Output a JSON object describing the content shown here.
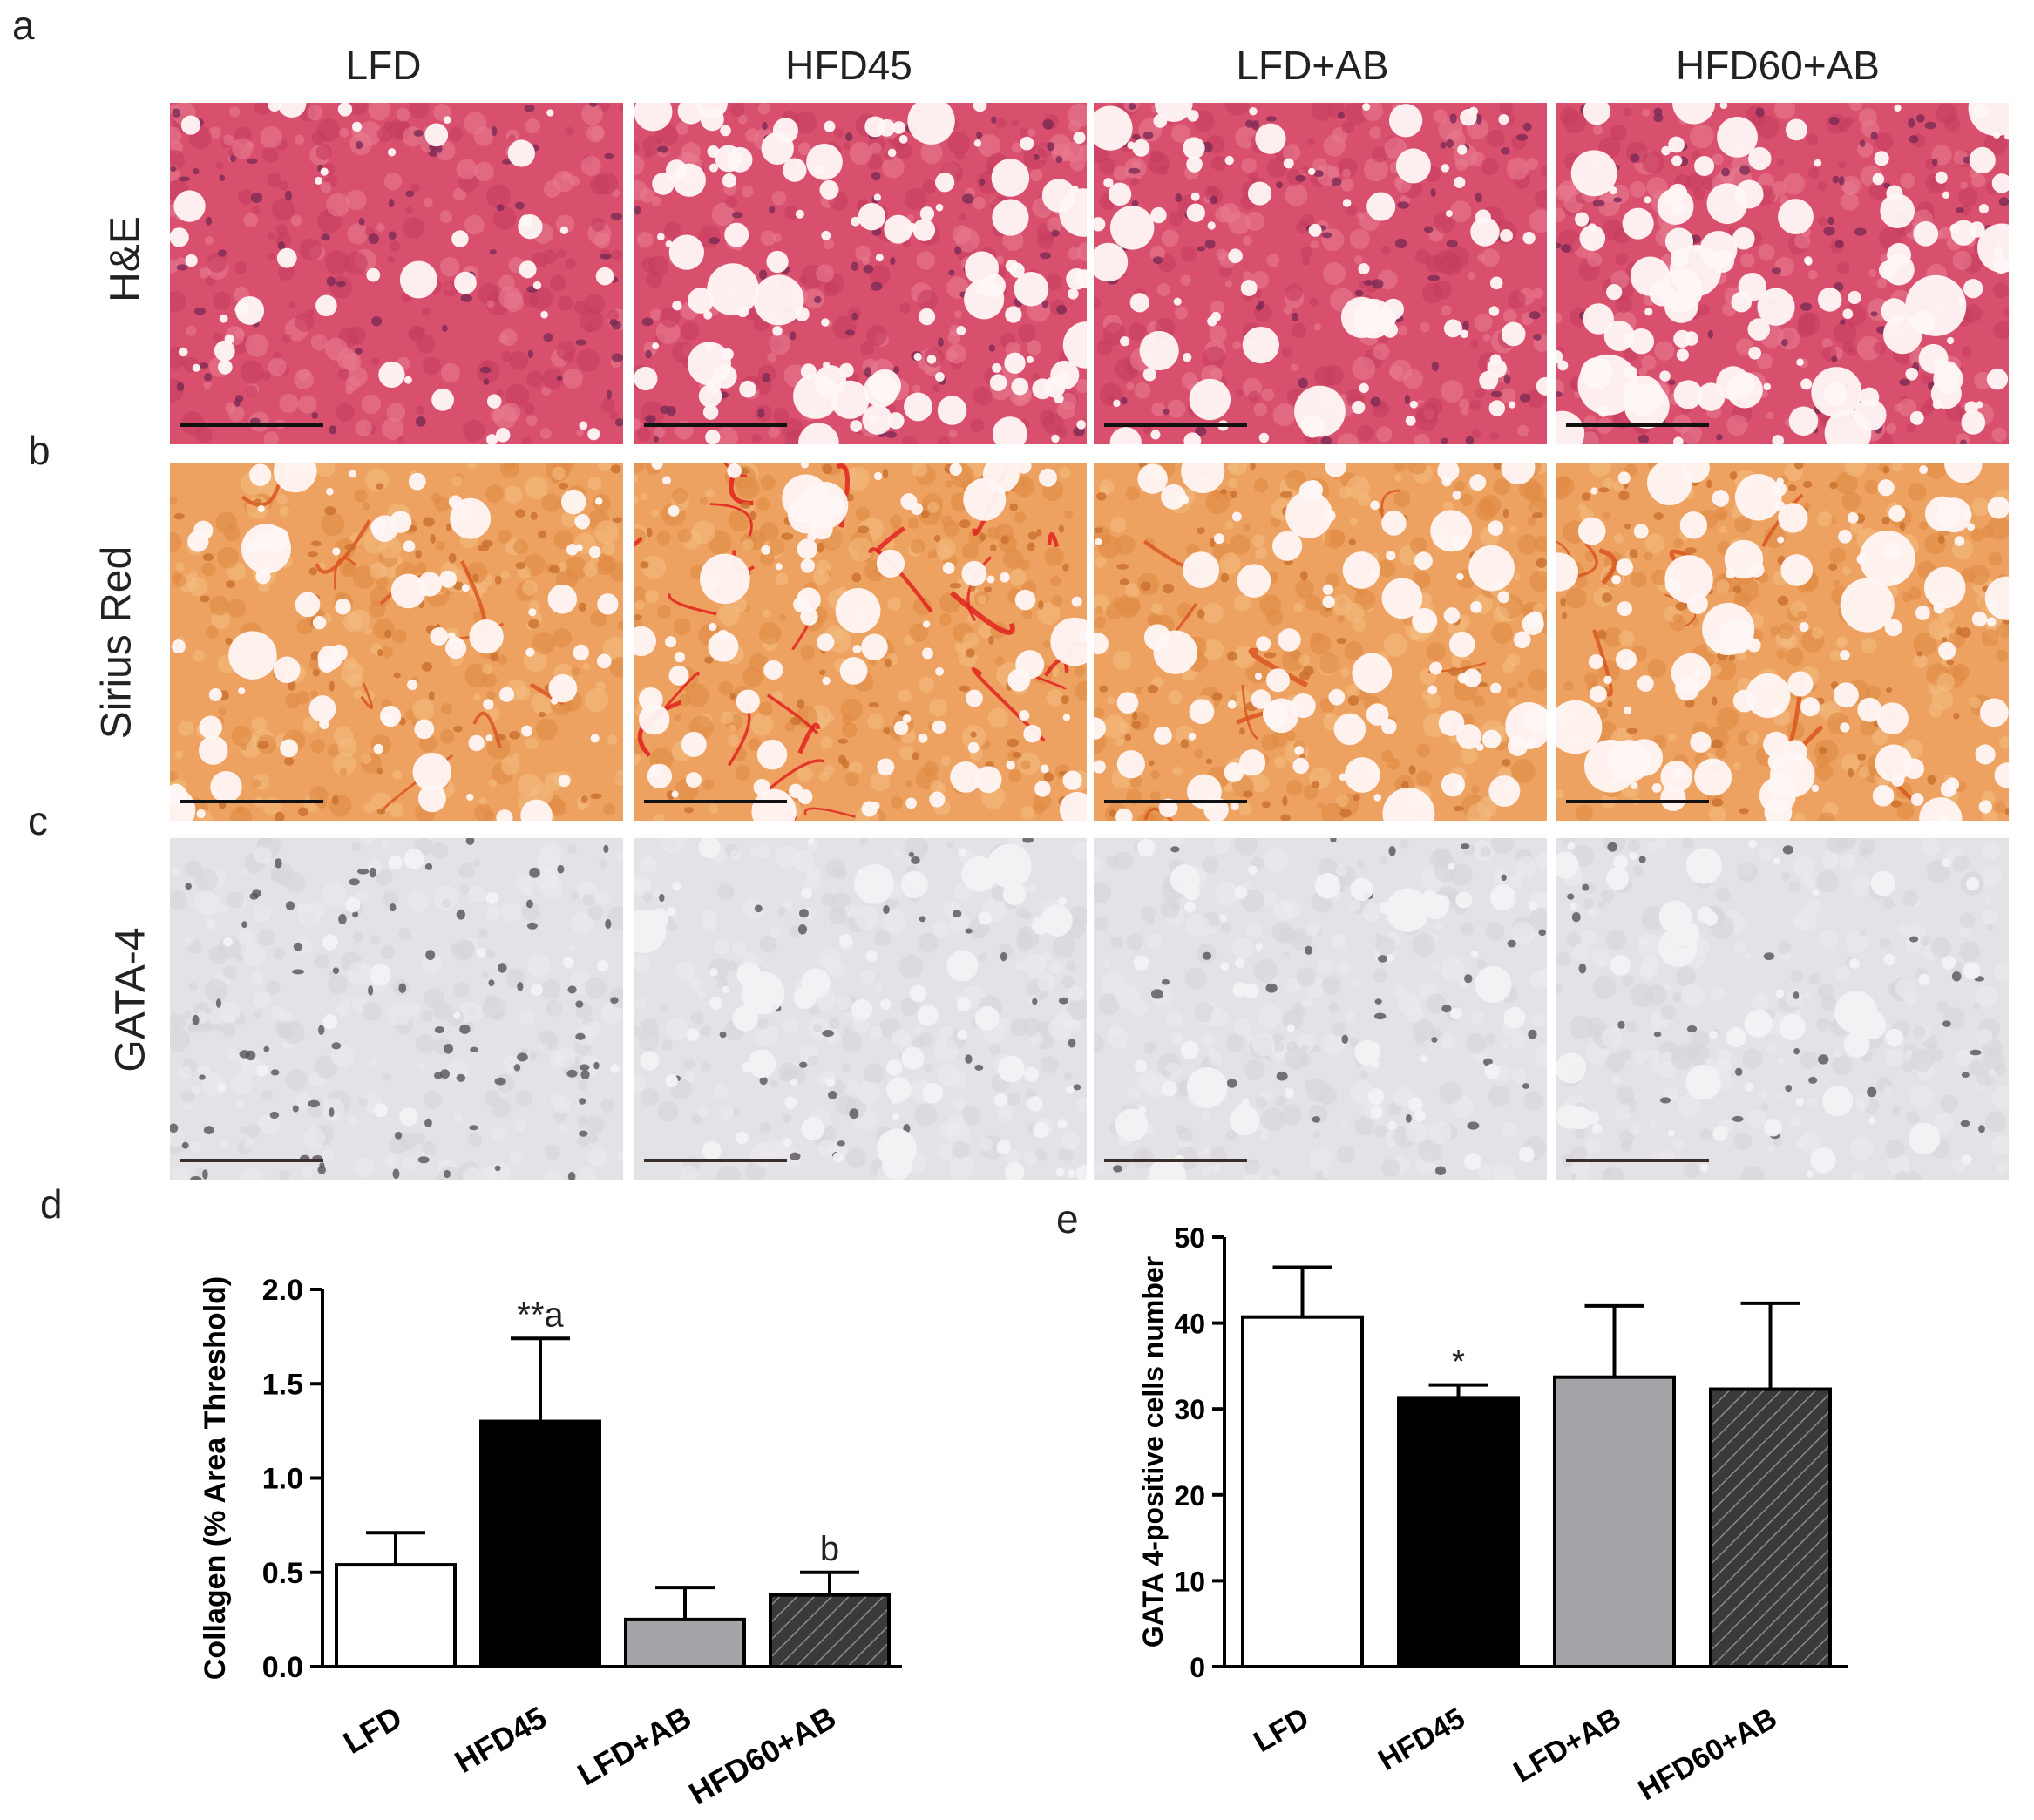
{
  "panel_letters": {
    "a": "a",
    "b": "b",
    "c": "c",
    "d": "d",
    "e": "e"
  },
  "columns": [
    "LFD",
    "HFD45",
    "LFD+AB",
    "HFD60+AB"
  ],
  "rows": [
    "H&E",
    "Sirius Red",
    "GATA-4"
  ],
  "colors": {
    "he_bg": "#d9506f",
    "sirius_bg": "#eea262",
    "gata_bg": "#e3e2e6",
    "bar_lfd": "#ffffff",
    "bar_hfd45": "#000000",
    "bar_lfdab": "#a3a3a8",
    "bar_hfd60ab": "#3a3a3a"
  },
  "chart_data": [
    {
      "type": "bar",
      "panel": "d",
      "categories": [
        "LFD",
        "HFD45",
        "LFD+AB",
        "HFD60+AB"
      ],
      "values": [
        0.54,
        1.3,
        0.25,
        0.38
      ],
      "errors": [
        0.17,
        0.44,
        0.17,
        0.12
      ],
      "annotations": [
        "",
        "**a",
        "",
        "b"
      ],
      "ylabel": "Collagen (% Area Threshold)",
      "ylim": [
        0,
        2.0
      ],
      "yticks": [
        "0.0",
        "0.5",
        "1.0",
        "1.5",
        "2.0"
      ],
      "grid": false
    },
    {
      "type": "bar",
      "panel": "e",
      "categories": [
        "LFD",
        "HFD45",
        "LFD+AB",
        "HFD60+AB"
      ],
      "values": [
        40.7,
        31.3,
        33.7,
        32.3
      ],
      "errors": [
        5.8,
        1.5,
        8.3,
        10.0
      ],
      "annotations": [
        "",
        "*",
        "",
        ""
      ],
      "ylabel": "GATA 4-positive cells number",
      "ylim": [
        0,
        50
      ],
      "yticks": [
        "0",
        "10",
        "20",
        "30",
        "40",
        "50"
      ],
      "grid": false
    }
  ]
}
